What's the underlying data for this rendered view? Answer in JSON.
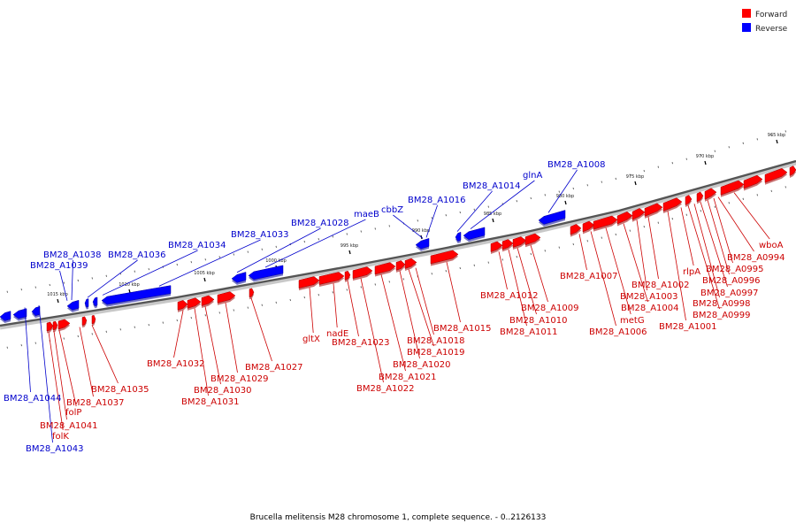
{
  "legend": {
    "forward_label": "Forward",
    "reverse_label": "Reverse",
    "forward_color": "#ff0000",
    "reverse_color": "#0000ff"
  },
  "caption": "Brucella melitensis M28 chromosome 1, complete sequence. - 0..2126133",
  "ticks": [
    "965 kbp",
    "970 kbp",
    "975 kbp",
    "980 kbp",
    "985 kbp",
    "990 kbp",
    "995 kbp",
    "1000 kbp",
    "1005 kbp",
    "1010 kbp",
    "1015 kbp"
  ],
  "genes": [
    {
      "label": "BM28_A1044",
      "strand": "reverse"
    },
    {
      "label": "BM28_A1043",
      "strand": "reverse"
    },
    {
      "label": "folK",
      "strand": "forward"
    },
    {
      "label": "BM28_A1041",
      "strand": "forward"
    },
    {
      "label": "folP",
      "strand": "forward"
    },
    {
      "label": "BM28_A1039",
      "strand": "reverse"
    },
    {
      "label": "BM28_A1038",
      "strand": "reverse"
    },
    {
      "label": "BM28_A1037",
      "strand": "forward"
    },
    {
      "label": "BM28_A1036",
      "strand": "reverse"
    },
    {
      "label": "BM28_A1035",
      "strand": "forward"
    },
    {
      "label": "BM28_A1034",
      "strand": "reverse"
    },
    {
      "label": "BM28_A1033",
      "strand": "reverse"
    },
    {
      "label": "BM28_A1032",
      "strand": "forward"
    },
    {
      "label": "BM28_A1031",
      "strand": "forward"
    },
    {
      "label": "BM28_A1030",
      "strand": "forward"
    },
    {
      "label": "BM28_A1029",
      "strand": "forward"
    },
    {
      "label": "BM28_A1028",
      "strand": "reverse"
    },
    {
      "label": "BM28_A1027",
      "strand": "forward"
    },
    {
      "label": "maeB",
      "strand": "reverse"
    },
    {
      "label": "gltX",
      "strand": "forward"
    },
    {
      "label": "nadE",
      "strand": "forward"
    },
    {
      "label": "BM28_A1023",
      "strand": "forward"
    },
    {
      "label": "BM28_A1022",
      "strand": "forward"
    },
    {
      "label": "BM28_A1021",
      "strand": "forward"
    },
    {
      "label": "cbbZ",
      "strand": "reverse"
    },
    {
      "label": "BM28_A1020",
      "strand": "forward"
    },
    {
      "label": "BM28_A1019",
      "strand": "forward"
    },
    {
      "label": "BM28_A1018",
      "strand": "forward"
    },
    {
      "label": "BM28_A1016",
      "strand": "reverse"
    },
    {
      "label": "BM28_A1015",
      "strand": "forward"
    },
    {
      "label": "BM28_A1014",
      "strand": "reverse"
    },
    {
      "label": "glnA",
      "strand": "reverse"
    },
    {
      "label": "BM28_A1012",
      "strand": "forward"
    },
    {
      "label": "BM28_A1011",
      "strand": "forward"
    },
    {
      "label": "BM28_A1010",
      "strand": "forward"
    },
    {
      "label": "BM28_A1009",
      "strand": "forward"
    },
    {
      "label": "BM28_A1008",
      "strand": "reverse"
    },
    {
      "label": "BM28_A1007",
      "strand": "forward"
    },
    {
      "label": "BM28_A1006",
      "strand": "forward"
    },
    {
      "label": "metG",
      "strand": "forward"
    },
    {
      "label": "BM28_A1004",
      "strand": "forward"
    },
    {
      "label": "BM28_A1003",
      "strand": "forward"
    },
    {
      "label": "BM28_A1002",
      "strand": "forward"
    },
    {
      "label": "BM28_A1001",
      "strand": "forward"
    },
    {
      "label": "rlpA",
      "strand": "forward"
    },
    {
      "label": "BM28_A0999",
      "strand": "forward"
    },
    {
      "label": "BM28_A0998",
      "strand": "forward"
    },
    {
      "label": "BM28_A0997",
      "strand": "forward"
    },
    {
      "label": "BM28_A0996",
      "strand": "forward"
    },
    {
      "label": "BM28_A0995",
      "strand": "forward"
    },
    {
      "label": "BM28_A0994",
      "strand": "forward"
    },
    {
      "label": "wboA",
      "strand": "forward"
    }
  ]
}
